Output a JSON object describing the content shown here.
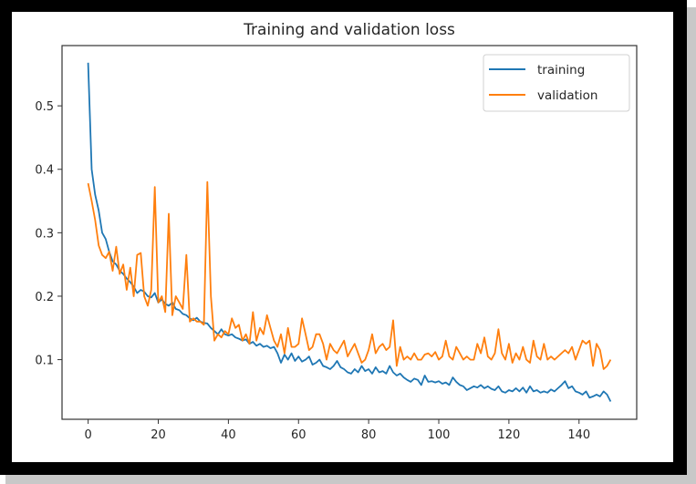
{
  "chart_data": {
    "type": "line",
    "title": "Training and validation loss",
    "xlabel": "",
    "ylabel": "",
    "xlim": [
      -7.45,
      156.45
    ],
    "ylim": [
      0.006,
      0.595
    ],
    "xticks": [
      0,
      20,
      40,
      60,
      80,
      100,
      120,
      140
    ],
    "xtick_labels": [
      "0",
      "20",
      "40",
      "60",
      "80",
      "100",
      "120",
      "140"
    ],
    "yticks": [
      0.1,
      0.2,
      0.3,
      0.4,
      0.5
    ],
    "ytick_labels": [
      "0.1",
      "0.2",
      "0.3",
      "0.4",
      "0.5"
    ],
    "grid": false,
    "legend_position": "top-right",
    "series": [
      {
        "name": "training",
        "color": "#1f77b4",
        "values": [
          0.568,
          0.4,
          0.36,
          0.335,
          0.3,
          0.29,
          0.27,
          0.255,
          0.25,
          0.24,
          0.235,
          0.228,
          0.222,
          0.215,
          0.205,
          0.21,
          0.207,
          0.2,
          0.198,
          0.205,
          0.19,
          0.195,
          0.188,
          0.185,
          0.19,
          0.18,
          0.178,
          0.172,
          0.17,
          0.165,
          0.162,
          0.166,
          0.16,
          0.158,
          0.157,
          0.15,
          0.145,
          0.14,
          0.148,
          0.14,
          0.138,
          0.14,
          0.135,
          0.133,
          0.13,
          0.132,
          0.125,
          0.128,
          0.122,
          0.125,
          0.12,
          0.122,
          0.118,
          0.12,
          0.11,
          0.095,
          0.108,
          0.1,
          0.11,
          0.098,
          0.105,
          0.097,
          0.1,
          0.105,
          0.092,
          0.095,
          0.1,
          0.09,
          0.088,
          0.085,
          0.09,
          0.098,
          0.088,
          0.085,
          0.08,
          0.078,
          0.085,
          0.08,
          0.09,
          0.082,
          0.085,
          0.078,
          0.088,
          0.08,
          0.082,
          0.078,
          0.09,
          0.08,
          0.075,
          0.078,
          0.072,
          0.068,
          0.065,
          0.07,
          0.068,
          0.06,
          0.075,
          0.065,
          0.066,
          0.064,
          0.066,
          0.062,
          0.064,
          0.06,
          0.072,
          0.065,
          0.06,
          0.058,
          0.052,
          0.055,
          0.058,
          0.056,
          0.06,
          0.055,
          0.058,
          0.054,
          0.052,
          0.058,
          0.05,
          0.048,
          0.052,
          0.05,
          0.055,
          0.05,
          0.056,
          0.048,
          0.058,
          0.05,
          0.052,
          0.048,
          0.05,
          0.048,
          0.053,
          0.05,
          0.055,
          0.06,
          0.066,
          0.055,
          0.058,
          0.05,
          0.048,
          0.045,
          0.05,
          0.04,
          0.042,
          0.045,
          0.042,
          0.05,
          0.045,
          0.034
        ]
      },
      {
        "name": "validation",
        "color": "#ff7f0e",
        "values": [
          0.378,
          0.35,
          0.32,
          0.28,
          0.265,
          0.26,
          0.27,
          0.24,
          0.278,
          0.235,
          0.25,
          0.21,
          0.245,
          0.2,
          0.265,
          0.268,
          0.2,
          0.185,
          0.21,
          0.372,
          0.19,
          0.2,
          0.175,
          0.33,
          0.17,
          0.2,
          0.19,
          0.18,
          0.265,
          0.16,
          0.165,
          0.16,
          0.16,
          0.155,
          0.38,
          0.2,
          0.13,
          0.14,
          0.135,
          0.145,
          0.14,
          0.165,
          0.15,
          0.155,
          0.13,
          0.14,
          0.125,
          0.175,
          0.13,
          0.15,
          0.14,
          0.17,
          0.15,
          0.13,
          0.12,
          0.14,
          0.11,
          0.15,
          0.12,
          0.12,
          0.125,
          0.165,
          0.14,
          0.115,
          0.12,
          0.14,
          0.14,
          0.125,
          0.1,
          0.125,
          0.115,
          0.11,
          0.12,
          0.13,
          0.105,
          0.115,
          0.125,
          0.11,
          0.095,
          0.1,
          0.115,
          0.14,
          0.11,
          0.12,
          0.125,
          0.115,
          0.12,
          0.162,
          0.09,
          0.12,
          0.1,
          0.105,
          0.1,
          0.11,
          0.1,
          0.1,
          0.108,
          0.11,
          0.105,
          0.112,
          0.1,
          0.105,
          0.13,
          0.105,
          0.1,
          0.12,
          0.11,
          0.1,
          0.105,
          0.1,
          0.1,
          0.125,
          0.11,
          0.135,
          0.105,
          0.1,
          0.11,
          0.148,
          0.11,
          0.1,
          0.125,
          0.095,
          0.11,
          0.1,
          0.12,
          0.1,
          0.095,
          0.13,
          0.105,
          0.1,
          0.125,
          0.1,
          0.105,
          0.1,
          0.105,
          0.11,
          0.115,
          0.11,
          0.12,
          0.1,
          0.115,
          0.13,
          0.125,
          0.13,
          0.09,
          0.125,
          0.115,
          0.085,
          0.09,
          0.1
        ]
      }
    ]
  }
}
